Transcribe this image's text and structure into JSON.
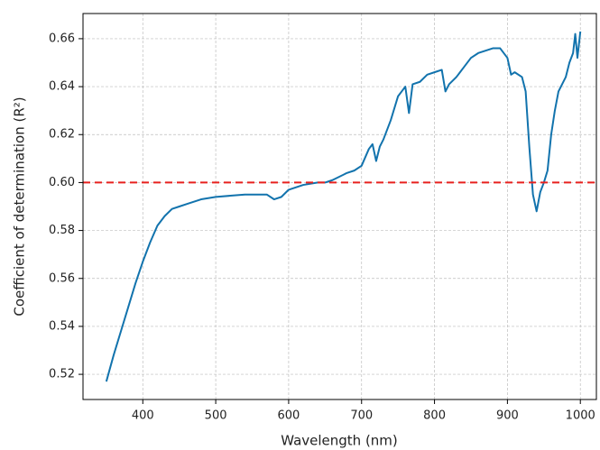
{
  "chart_data": {
    "type": "line",
    "xlabel": "Wavelength (nm)",
    "ylabel": "Coefficient of determination (R²)",
    "x": [
      350,
      360,
      370,
      380,
      390,
      400,
      410,
      420,
      430,
      440,
      450,
      460,
      480,
      500,
      520,
      540,
      560,
      570,
      580,
      590,
      600,
      620,
      640,
      650,
      660,
      680,
      690,
      700,
      710,
      715,
      720,
      725,
      730,
      740,
      750,
      760,
      765,
      770,
      780,
      790,
      800,
      810,
      815,
      820,
      830,
      840,
      850,
      860,
      870,
      880,
      890,
      900,
      905,
      910,
      920,
      925,
      930,
      935,
      940,
      945,
      950,
      955,
      960,
      965,
      970,
      980,
      985,
      990,
      993,
      996,
      1000
    ],
    "series": [
      {
        "color": "#1273ad",
        "values": [
          0.517,
          0.528,
          0.538,
          0.548,
          0.558,
          0.567,
          0.575,
          0.582,
          0.586,
          0.589,
          0.59,
          0.591,
          0.593,
          0.594,
          0.5945,
          0.595,
          0.595,
          0.595,
          0.593,
          0.594,
          0.597,
          0.599,
          0.6,
          0.6,
          0.601,
          0.604,
          0.605,
          0.607,
          0.614,
          0.616,
          0.609,
          0.615,
          0.618,
          0.626,
          0.636,
          0.64,
          0.629,
          0.641,
          0.642,
          0.645,
          0.646,
          0.647,
          0.638,
          0.641,
          0.644,
          0.648,
          0.652,
          0.654,
          0.655,
          0.656,
          0.656,
          0.652,
          0.645,
          0.646,
          0.644,
          0.638,
          0.615,
          0.595,
          0.588,
          0.596,
          0.6,
          0.605,
          0.62,
          0.63,
          0.638,
          0.644,
          0.65,
          0.654,
          0.662,
          0.652,
          0.663
        ]
      }
    ],
    "hline": {
      "value": 0.6,
      "color": "#e8211d"
    },
    "xlim": [
      318,
      1022
    ],
    "ylim": [
      0.5095,
      0.6705
    ],
    "xticks": [
      400,
      500,
      600,
      700,
      800,
      900,
      1000
    ],
    "yticks": [
      0.52,
      0.54,
      0.56,
      0.58,
      {
        "value": 0.6,
        "label": "0.60"
      },
      0.62,
      0.64,
      0.66
    ],
    "grid": true
  }
}
